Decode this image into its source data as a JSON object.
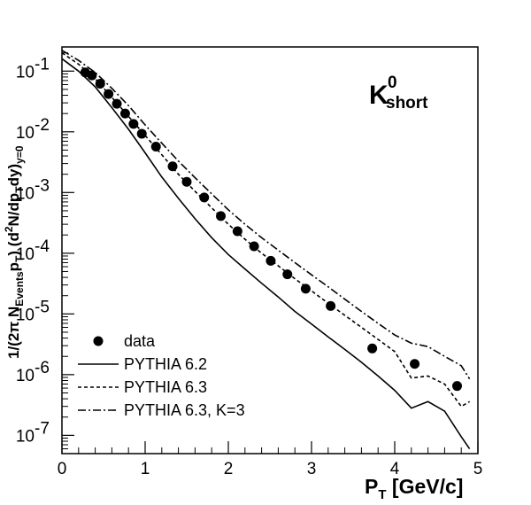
{
  "chart_data": {
    "type": "scatter",
    "title": "",
    "xlabel": "P_T [GeV/c]",
    "ylabel": "1/(2π N_Events p_T) (d²N/dp_T dy)_y=0",
    "xlim": [
      0,
      5
    ],
    "ylim": [
      5e-08,
      0.25
    ],
    "yscale": "log",
    "x_ticks": [
      0,
      1,
      2,
      3,
      4,
      5
    ],
    "y_tick_exponents": [
      -7,
      -6,
      -5,
      -4,
      -3,
      -2,
      -1
    ],
    "annotation": {
      "main": "K",
      "superscript": "0",
      "subscript": "short"
    },
    "legend_position": "bottom-left",
    "series": [
      {
        "name": "data",
        "style": "markers",
        "x": [
          0.28,
          0.36,
          0.46,
          0.56,
          0.66,
          0.76,
          0.86,
          0.96,
          1.13,
          1.33,
          1.5,
          1.71,
          1.91,
          2.11,
          2.31,
          2.51,
          2.71,
          2.93,
          3.23,
          3.73,
          4.24,
          4.75
        ],
        "values": [
          0.095,
          0.085,
          0.062,
          0.042,
          0.029,
          0.02,
          0.0135,
          0.0093,
          0.0057,
          0.0027,
          0.0015,
          0.00083,
          0.00041,
          0.00023,
          0.00013,
          7.5e-05,
          4.5e-05,
          2.6e-05,
          1.35e-05,
          2.7e-06,
          1.5e-06,
          6.5e-07
        ]
      },
      {
        "name": "PYTHIA 6.2",
        "style": "solid",
        "x": [
          0.0,
          0.2,
          0.4,
          0.6,
          0.8,
          1.0,
          1.2,
          1.4,
          1.6,
          1.8,
          2.0,
          2.2,
          2.4,
          2.6,
          2.8,
          3.0,
          3.2,
          3.4,
          3.6,
          3.8,
          4.0,
          4.2,
          4.4,
          4.6,
          4.8,
          4.9
        ],
        "values": [
          0.16,
          0.1,
          0.055,
          0.025,
          0.011,
          0.0045,
          0.0018,
          0.0008,
          0.00037,
          0.00018,
          9.5e-05,
          5.5e-05,
          3.2e-05,
          1.9e-05,
          1.1e-05,
          6.8e-06,
          4.2e-06,
          2.6e-06,
          1.6e-06,
          9.5e-07,
          5.5e-07,
          2.8e-07,
          3.6e-07,
          2.5e-07,
          9.5e-08,
          6e-08
        ]
      },
      {
        "name": "PYTHIA 6.3",
        "style": "dashed",
        "x": [
          0.0,
          0.2,
          0.4,
          0.6,
          0.8,
          1.0,
          1.2,
          1.4,
          1.6,
          1.8,
          2.0,
          2.2,
          2.4,
          2.6,
          2.8,
          3.0,
          3.2,
          3.4,
          3.6,
          3.8,
          4.0,
          4.2,
          4.4,
          4.6,
          4.8,
          4.9
        ],
        "values": [
          0.2,
          0.13,
          0.075,
          0.037,
          0.018,
          0.0087,
          0.0042,
          0.002,
          0.00105,
          0.00056,
          0.0003,
          0.00017,
          0.0001,
          6.2e-05,
          3.8e-05,
          2.4e-05,
          1.5e-05,
          9.5e-06,
          6e-06,
          3.8e-06,
          2.4e-06,
          8.8e-07,
          9.5e-07,
          7e-07,
          3e-07,
          3.6e-07
        ]
      },
      {
        "name": "PYTHIA 6.3, K=3",
        "style": "dash-dot",
        "x": [
          0.0,
          0.2,
          0.4,
          0.6,
          0.8,
          1.0,
          1.2,
          1.4,
          1.6,
          1.8,
          2.0,
          2.2,
          2.4,
          2.6,
          2.8,
          3.0,
          3.2,
          3.4,
          3.6,
          3.8,
          4.0,
          4.2,
          4.4,
          4.6,
          4.8,
          4.9
        ],
        "values": [
          0.22,
          0.15,
          0.095,
          0.052,
          0.027,
          0.013,
          0.0065,
          0.0033,
          0.00175,
          0.00095,
          0.00052,
          0.0003,
          0.00018,
          0.000112,
          7e-05,
          4.4e-05,
          2.8e-05,
          1.75e-05,
          1.1e-05,
          7e-06,
          4.5e-06,
          3.3e-06,
          2.9e-06,
          2e-06,
          1.4e-06,
          8.5e-07
        ]
      }
    ]
  }
}
